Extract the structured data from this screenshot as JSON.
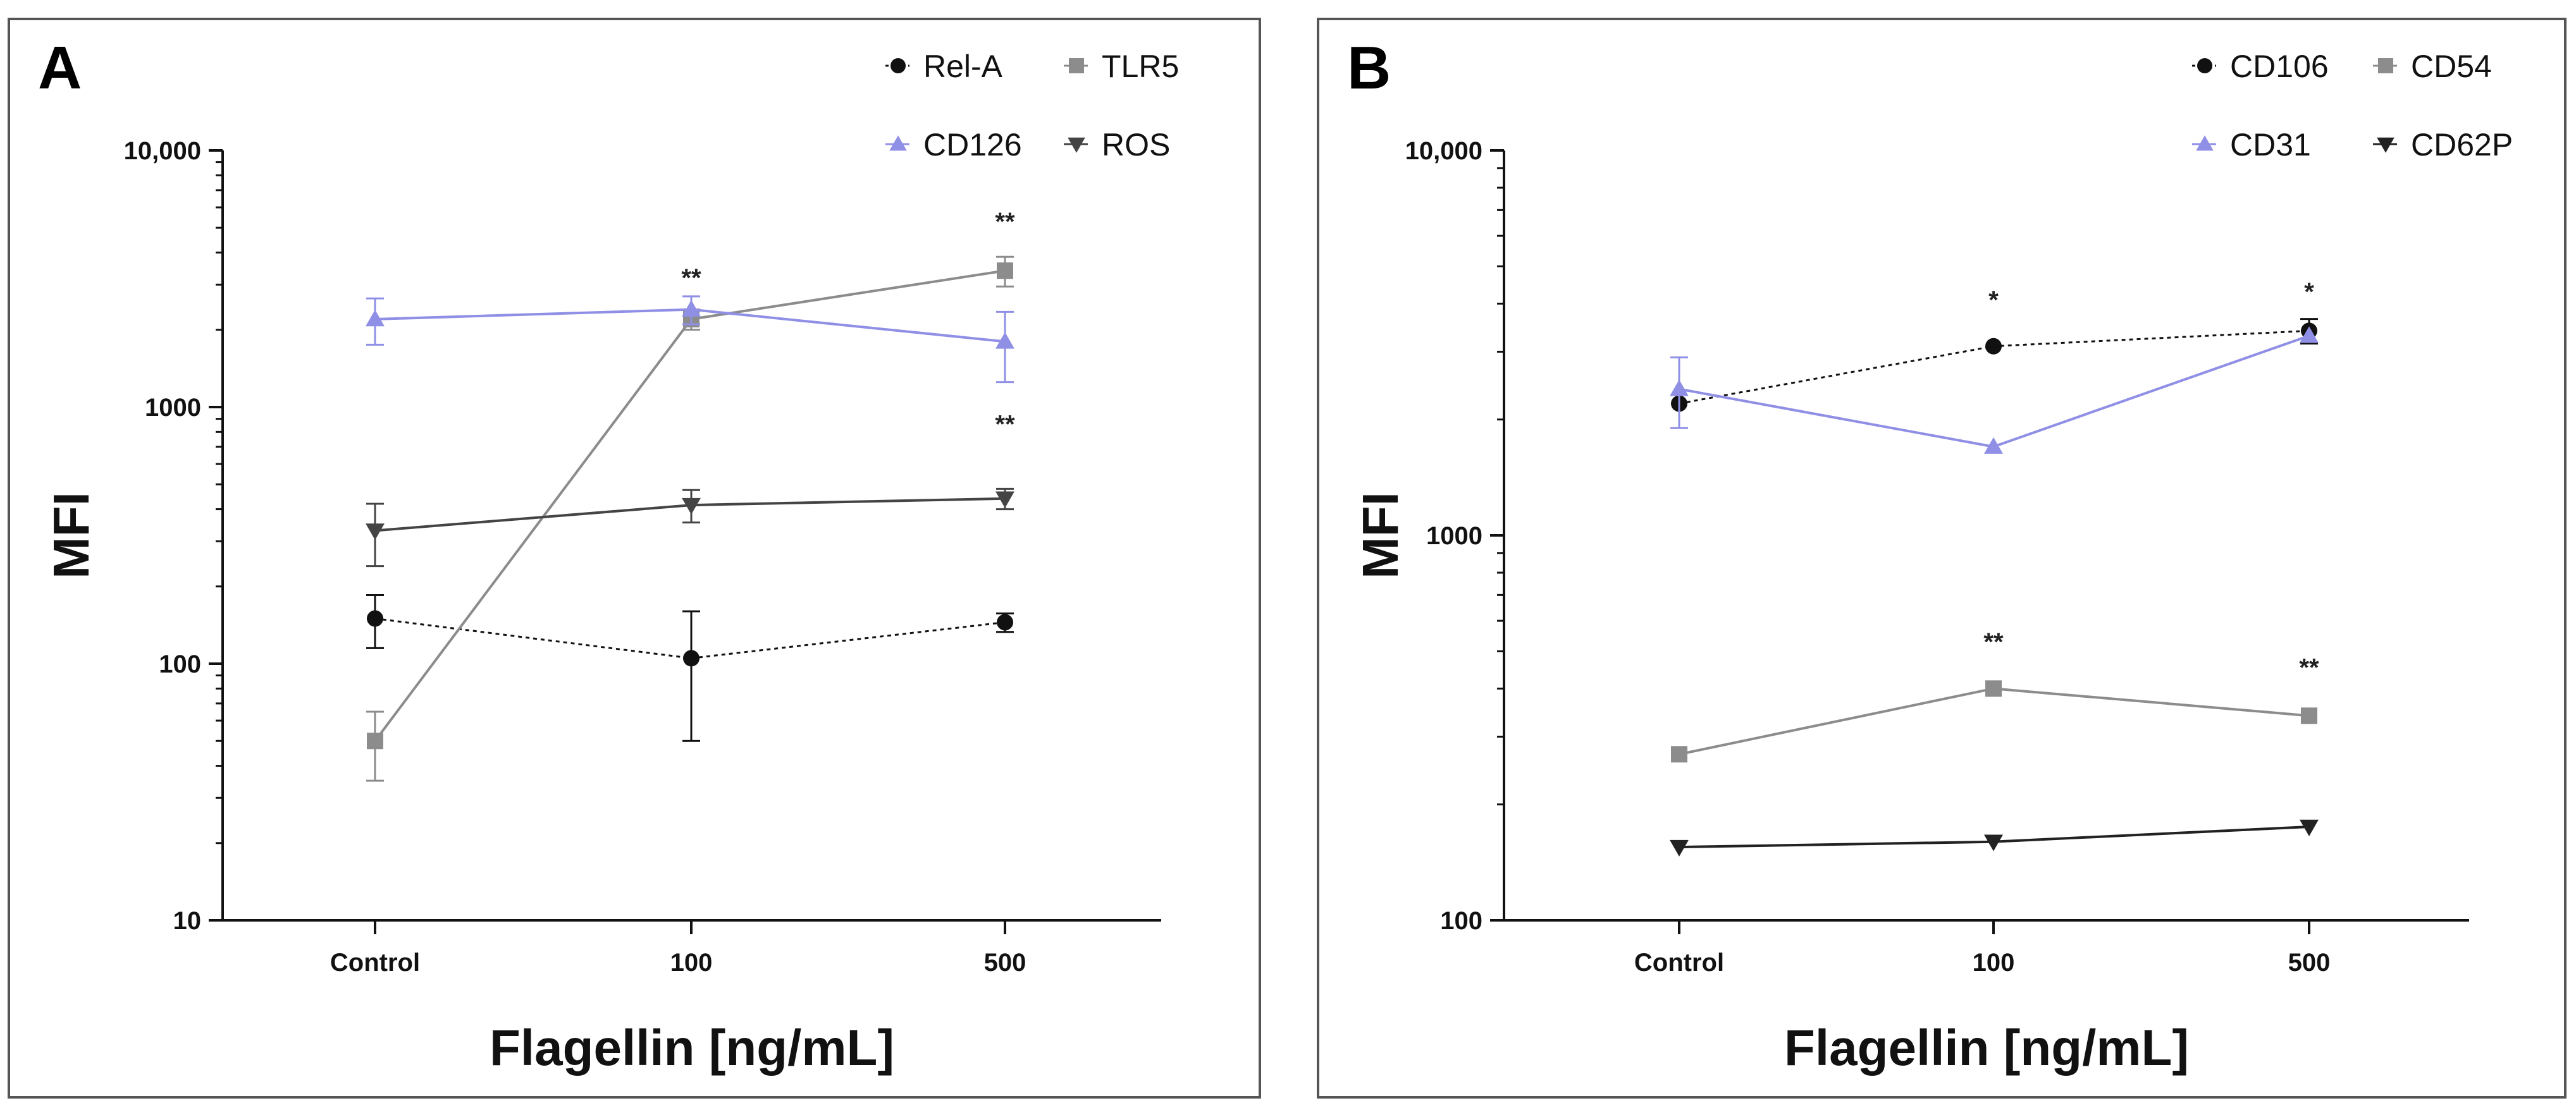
{
  "chart_data": [
    {
      "type": "line",
      "panel_label": "A",
      "xlabel": "Flagellin [ng/mL]",
      "ylabel": "MFI",
      "yscale": "log",
      "ylim": [
        10,
        10000
      ],
      "yticks": [
        10,
        100,
        1000,
        10000
      ],
      "yticklabels": [
        "10",
        "100",
        "1000",
        "10,000"
      ],
      "categories": [
        "Control",
        "100",
        "500"
      ],
      "legend_position": "top-right",
      "series": [
        {
          "name": "Rel-A",
          "marker": "circle",
          "color": "#111111",
          "line": "dotted",
          "values": [
            150,
            105,
            145
          ],
          "err": [
            35,
            55,
            12
          ]
        },
        {
          "name": "TLR5",
          "marker": "square",
          "color": "#8c8c8c",
          "line": "solid",
          "values": [
            50,
            2200,
            3400
          ],
          "err": [
            15,
            200,
            450
          ]
        },
        {
          "name": "CD126",
          "marker": "triangle-up",
          "color": "#8f8fe6",
          "line": "solid",
          "values": [
            2200,
            2400,
            1800
          ],
          "err": [
            450,
            300,
            550
          ]
        },
        {
          "name": "ROS",
          "marker": "triangle-down",
          "color": "#444444",
          "line": "solid",
          "values": [
            330,
            415,
            440
          ],
          "err": [
            90,
            60,
            40
          ]
        }
      ],
      "annotations": [
        {
          "category": "100",
          "value": 3200,
          "text": "**"
        },
        {
          "category": "500",
          "value": 5300,
          "text": "**"
        },
        {
          "category": "500",
          "value": 860,
          "text": "**"
        }
      ]
    },
    {
      "type": "line",
      "panel_label": "B",
      "xlabel": "Flagellin [ng/mL]",
      "ylabel": "MFI",
      "yscale": "log",
      "ylim": [
        100,
        10000
      ],
      "yticks": [
        100,
        1000,
        10000
      ],
      "yticklabels": [
        "100",
        "1000",
        "10,000"
      ],
      "categories": [
        "Control",
        "100",
        "500"
      ],
      "legend_position": "top-right",
      "series": [
        {
          "name": "CD106",
          "marker": "circle",
          "color": "#111111",
          "line": "dotted",
          "values": [
            2200,
            3100,
            3400
          ],
          "err": [
            0,
            0,
            250
          ]
        },
        {
          "name": "CD54",
          "marker": "square",
          "color": "#8c8c8c",
          "line": "solid",
          "values": [
            270,
            400,
            340
          ],
          "err": [
            0,
            0,
            0
          ]
        },
        {
          "name": "CD31",
          "marker": "triangle-up",
          "color": "#8f8fe6",
          "line": "solid",
          "values": [
            2400,
            1700,
            3300
          ],
          "err": [
            500,
            0,
            0
          ]
        },
        {
          "name": "CD62P",
          "marker": "triangle-down",
          "color": "#222222",
          "line": "solid",
          "values": [
            155,
            160,
            175
          ],
          "err": [
            0,
            0,
            0
          ]
        }
      ],
      "annotations": [
        {
          "category": "100",
          "value": 4100,
          "text": "*"
        },
        {
          "category": "500",
          "value": 4300,
          "text": "*"
        },
        {
          "category": "100",
          "value": 530,
          "text": "**"
        },
        {
          "category": "500",
          "value": 455,
          "text": "**"
        }
      ]
    }
  ]
}
